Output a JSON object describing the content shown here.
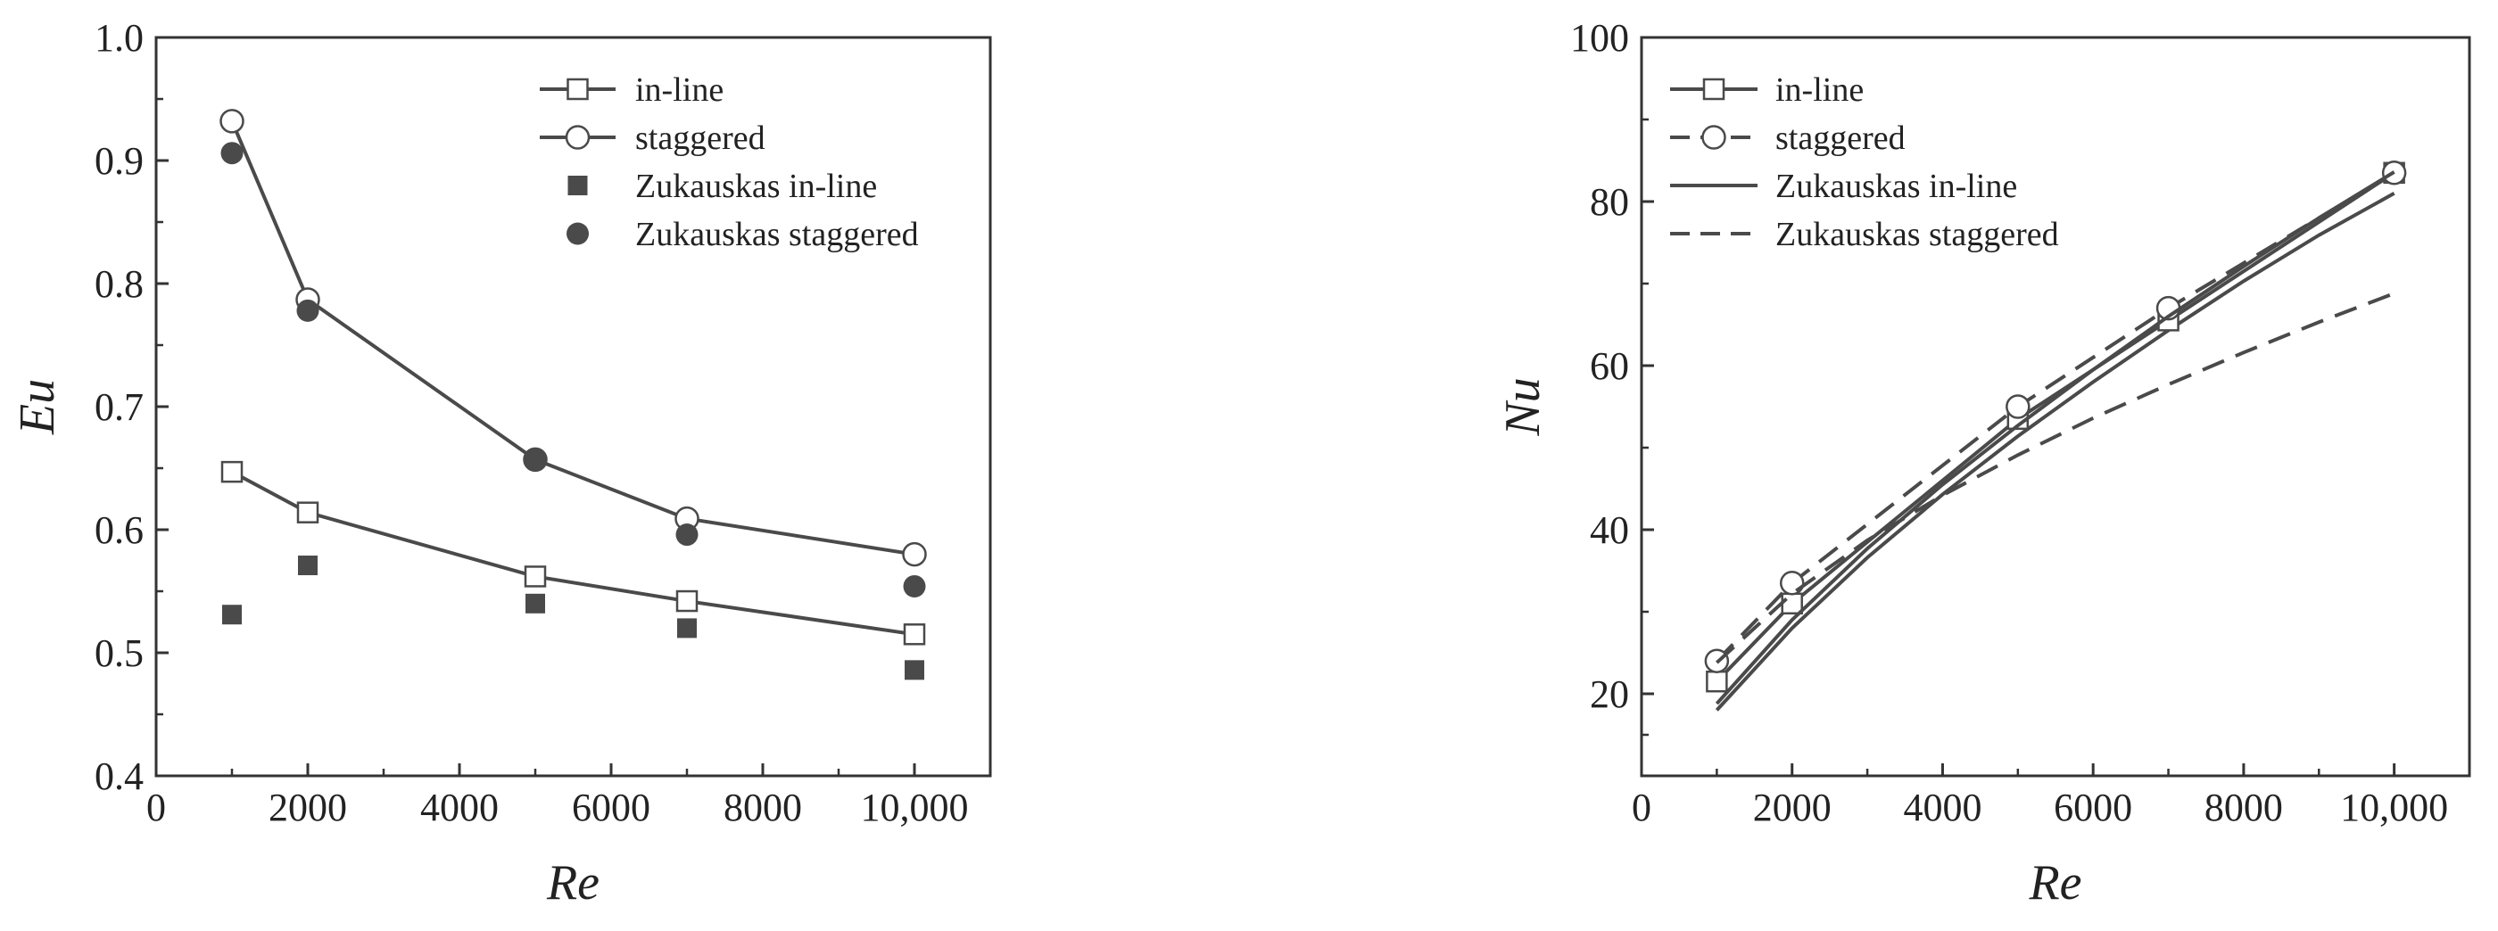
{
  "chart_data": [
    {
      "type": "line",
      "xlabel": "Re",
      "ylabel": "Eu",
      "xlim": [
        0,
        11000
      ],
      "ylim": [
        0.4,
        1.0
      ],
      "xticks": [
        0,
        2000,
        4000,
        6000,
        8000,
        10000
      ],
      "xtick_labels": [
        "0",
        "2000",
        "4000",
        "6000",
        "8000",
        "10,000"
      ],
      "yticks": [
        0.4,
        0.5,
        0.6,
        0.7,
        0.8,
        0.9,
        1.0
      ],
      "ytick_labels": [
        "0.4",
        "0.5",
        "0.6",
        "0.7",
        "0.8",
        "0.9",
        "1.0"
      ],
      "grid": false,
      "legend_position": "top-right",
      "series": [
        {
          "name": "in-line",
          "style": "line-open-square",
          "x": [
            1000,
            2000,
            5000,
            7000,
            10000
          ],
          "y": [
            0.647,
            0.614,
            0.562,
            0.542,
            0.515
          ]
        },
        {
          "name": "staggered",
          "style": "line-open-circle",
          "x": [
            1000,
            2000,
            5000,
            7000,
            10000
          ],
          "y": [
            0.932,
            0.787,
            0.657,
            0.609,
            0.58
          ]
        },
        {
          "name": "Zukauskas in-line",
          "style": "filled-square",
          "x": [
            1000,
            2000,
            5000,
            7000,
            10000
          ],
          "y": [
            0.531,
            0.571,
            0.54,
            0.52,
            0.486
          ]
        },
        {
          "name": "Zukauskas staggered",
          "style": "filled-circle",
          "x": [
            1000,
            2000,
            5000,
            7000,
            10000
          ],
          "y": [
            0.906,
            0.778,
            0.657,
            0.596,
            0.554
          ]
        }
      ]
    },
    {
      "type": "line",
      "xlabel": "Re",
      "ylabel": "Nu",
      "xlim": [
        0,
        11000
      ],
      "ylim": [
        10,
        100
      ],
      "xticks": [
        0,
        2000,
        4000,
        6000,
        8000,
        10000
      ],
      "xtick_labels": [
        "0",
        "2000",
        "4000",
        "6000",
        "8000",
        "10,000"
      ],
      "yticks": [
        20,
        40,
        60,
        80,
        100
      ],
      "ytick_labels": [
        "20",
        "40",
        "60",
        "80",
        "100"
      ],
      "grid": false,
      "legend_position": "top-left",
      "series": [
        {
          "name": "in-line",
          "style": "line-open-square",
          "x": [
            1000,
            2000,
            5000,
            7000,
            10000
          ],
          "y": [
            21.5,
            31.0,
            53.5,
            65.5,
            83.5
          ]
        },
        {
          "name": "staggered",
          "style": "dashed-open-circle",
          "x": [
            1000,
            2000,
            5000,
            7000,
            10000
          ],
          "y": [
            24.0,
            33.5,
            55.0,
            67.0,
            83.5
          ]
        },
        {
          "name": "Zukauskas in-line",
          "style": "solid-curve",
          "x": [
            1000,
            2000,
            3000,
            4000,
            5000,
            6000,
            7000,
            8000,
            9000,
            10000
          ],
          "y": [
            18.8,
            29.0,
            37.7,
            45.5,
            52.7,
            59.5,
            66.0,
            72.1,
            78.0,
            83.6
          ]
        },
        {
          "name": "Zukauskas staggered",
          "style": "dashed-curve",
          "x": [
            1000,
            2000,
            3000,
            4000,
            5000,
            6000,
            7000,
            8000,
            9000,
            10000
          ],
          "y": [
            23.8,
            32.2,
            38.7,
            44.2,
            49.1,
            53.6,
            57.7,
            61.6,
            65.3,
            68.8
          ]
        }
      ],
      "extra_curve": {
        "style": "solid-curve",
        "x": [
          1000,
          2000,
          3000,
          4000,
          5000,
          6000,
          7000,
          8000,
          9000,
          10000
        ],
        "y": [
          18.0,
          28.0,
          36.6,
          44.3,
          51.4,
          58.0,
          64.3,
          70.3,
          75.9,
          81.0
        ]
      }
    }
  ]
}
